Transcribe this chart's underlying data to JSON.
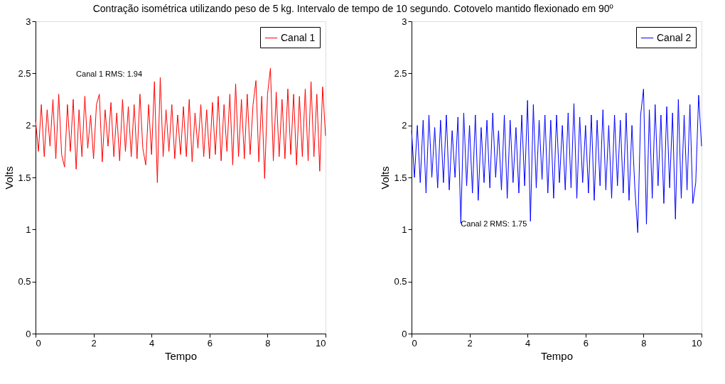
{
  "chart_data": [
    {
      "type": "line",
      "title": "Contração isométrica utilizando peso de 5 kg. Intervalo de tempo de 10 segundo. Cotovelo mantido flexionado em 90º",
      "xlabel": "Tempo",
      "ylabel": "Volts",
      "xlim": [
        0,
        10
      ],
      "ylim": [
        0,
        3
      ],
      "xticks": [
        0,
        2,
        4,
        6,
        8,
        10
      ],
      "yticks": [
        0,
        0.5,
        1,
        1.5,
        2,
        2.5,
        3
      ],
      "grid": false,
      "legend": "top right",
      "marker": "none",
      "line_style": "solid",
      "annotations": [
        "Canal 1 RMS: 1.94"
      ],
      "x": [
        0,
        0.1,
        0.2,
        0.3,
        0.4,
        0.5,
        0.6,
        0.7,
        0.8,
        0.9,
        1,
        1.1,
        1.2,
        1.3,
        1.4,
        1.5,
        1.6,
        1.7,
        1.8,
        1.9,
        2,
        2.1,
        2.2,
        2.3,
        2.4,
        2.5,
        2.6,
        2.7,
        2.8,
        2.9,
        3,
        3.1,
        3.2,
        3.3,
        3.4,
        3.5,
        3.6,
        3.7,
        3.8,
        3.9,
        4,
        4.1,
        4.2,
        4.3,
        4.4,
        4.5,
        4.6,
        4.7,
        4.8,
        4.9,
        5,
        5.1,
        5.2,
        5.3,
        5.4,
        5.5,
        5.6,
        5.7,
        5.8,
        5.9,
        6,
        6.1,
        6.2,
        6.3,
        6.4,
        6.5,
        6.6,
        6.7,
        6.8,
        6.9,
        7,
        7.1,
        7.2,
        7.3,
        7.4,
        7.5,
        7.6,
        7.7,
        7.8,
        7.9,
        8,
        8.1,
        8.2,
        8.3,
        8.4,
        8.5,
        8.6,
        8.7,
        8.8,
        8.9,
        9,
        9.1,
        9.2,
        9.3,
        9.4,
        9.5,
        9.6,
        9.7,
        9.8,
        9.9,
        10
      ],
      "series": [
        {
          "name": "Canal 1",
          "color": "#ff0000",
          "values": [
            2.05,
            1.75,
            2.2,
            1.7,
            2.15,
            1.8,
            2.25,
            1.68,
            2.3,
            1.72,
            1.6,
            2.2,
            1.75,
            2.25,
            1.58,
            2.15,
            1.7,
            2.28,
            1.78,
            2.1,
            1.68,
            2.2,
            2.3,
            1.65,
            2.15,
            1.8,
            2.22,
            1.7,
            2.12,
            1.66,
            2.25,
            1.75,
            2.18,
            1.7,
            2.2,
            1.68,
            2.3,
            1.78,
            1.62,
            2.2,
            1.72,
            2.42,
            1.45,
            2.46,
            1.7,
            2.15,
            1.75,
            2.2,
            1.68,
            2.1,
            1.72,
            2.18,
            1.7,
            2.25,
            1.65,
            2.12,
            1.78,
            2.2,
            1.7,
            2.15,
            1.68,
            2.22,
            1.72,
            2.28,
            1.66,
            2.2,
            1.75,
            2.3,
            1.62,
            2.4,
            1.7,
            2.25,
            1.68,
            2.3,
            1.72,
            2.2,
            2.43,
            1.65,
            2.28,
            1.49,
            2.3,
            2.55,
            1.66,
            2.32,
            1.7,
            2.25,
            1.68,
            2.35,
            1.72,
            2.3,
            1.62,
            2.28,
            1.7,
            2.35,
            1.66,
            2.42,
            1.7,
            2.3,
            1.56,
            2.37,
            1.9
          ]
        }
      ]
    },
    {
      "type": "line",
      "xlabel": "Tempo",
      "ylabel": "Volts",
      "xlim": [
        0,
        10
      ],
      "ylim": [
        0,
        3
      ],
      "xticks": [
        0,
        2,
        4,
        6,
        8,
        10
      ],
      "yticks": [
        0,
        0.5,
        1,
        1.5,
        2,
        2.5,
        3
      ],
      "grid": false,
      "legend": "top right",
      "marker": "none",
      "line_style": "solid",
      "annotations": [
        "Canal 2 RMS: 1.75"
      ],
      "x": [
        0,
        0.1,
        0.2,
        0.3,
        0.4,
        0.5,
        0.6,
        0.7,
        0.8,
        0.9,
        1,
        1.1,
        1.2,
        1.3,
        1.4,
        1.5,
        1.6,
        1.7,
        1.8,
        1.9,
        2,
        2.1,
        2.2,
        2.3,
        2.4,
        2.5,
        2.6,
        2.7,
        2.8,
        2.9,
        3,
        3.1,
        3.2,
        3.3,
        3.4,
        3.5,
        3.6,
        3.7,
        3.8,
        3.9,
        4,
        4.1,
        4.2,
        4.3,
        4.4,
        4.5,
        4.6,
        4.7,
        4.8,
        4.9,
        5,
        5.1,
        5.2,
        5.3,
        5.4,
        5.5,
        5.6,
        5.7,
        5.8,
        5.9,
        6,
        6.1,
        6.2,
        6.3,
        6.4,
        6.5,
        6.6,
        6.7,
        6.8,
        6.9,
        7,
        7.1,
        7.2,
        7.3,
        7.4,
        7.5,
        7.6,
        7.7,
        7.8,
        7.9,
        8,
        8.1,
        8.2,
        8.3,
        8.4,
        8.5,
        8.6,
        8.7,
        8.8,
        8.9,
        9,
        9.1,
        9.2,
        9.3,
        9.4,
        9.5,
        9.6,
        9.7,
        9.8,
        9.9,
        10
      ],
      "series": [
        {
          "name": "Canal 2",
          "color": "#0000ff",
          "values": [
            1.95,
            1.5,
            2.0,
            1.45,
            2.05,
            1.35,
            2.1,
            1.5,
            1.98,
            1.4,
            2.05,
            1.45,
            2.1,
            1.38,
            1.95,
            1.5,
            2.08,
            1.06,
            2.12,
            1.42,
            2.0,
            1.35,
            2.1,
            1.28,
            1.98,
            1.45,
            2.05,
            1.4,
            2.12,
            1.5,
            1.95,
            1.38,
            2.1,
            1.3,
            2.05,
            1.45,
            1.98,
            1.35,
            2.1,
            1.42,
            2.24,
            1.08,
            2.2,
            1.4,
            2.05,
            1.48,
            2.1,
            1.35,
            2.05,
            1.3,
            2.1,
            1.45,
            2.0,
            1.38,
            2.12,
            1.4,
            2.21,
            1.3,
            2.08,
            1.45,
            2.0,
            1.35,
            2.1,
            1.28,
            2.05,
            1.42,
            2.15,
            1.38,
            2.0,
            1.3,
            2.1,
            1.42,
            2.05,
            1.35,
            2.12,
            1.28,
            2.0,
            1.4,
            0.97,
            2.1,
            2.35,
            1.05,
            2.15,
            1.3,
            2.2,
            1.42,
            2.1,
            1.25,
            2.18,
            1.4,
            2.12,
            1.1,
            2.25,
            1.3,
            2.1,
            1.38,
            2.2,
            1.25,
            1.45,
            2.29,
            1.8
          ]
        }
      ]
    }
  ]
}
